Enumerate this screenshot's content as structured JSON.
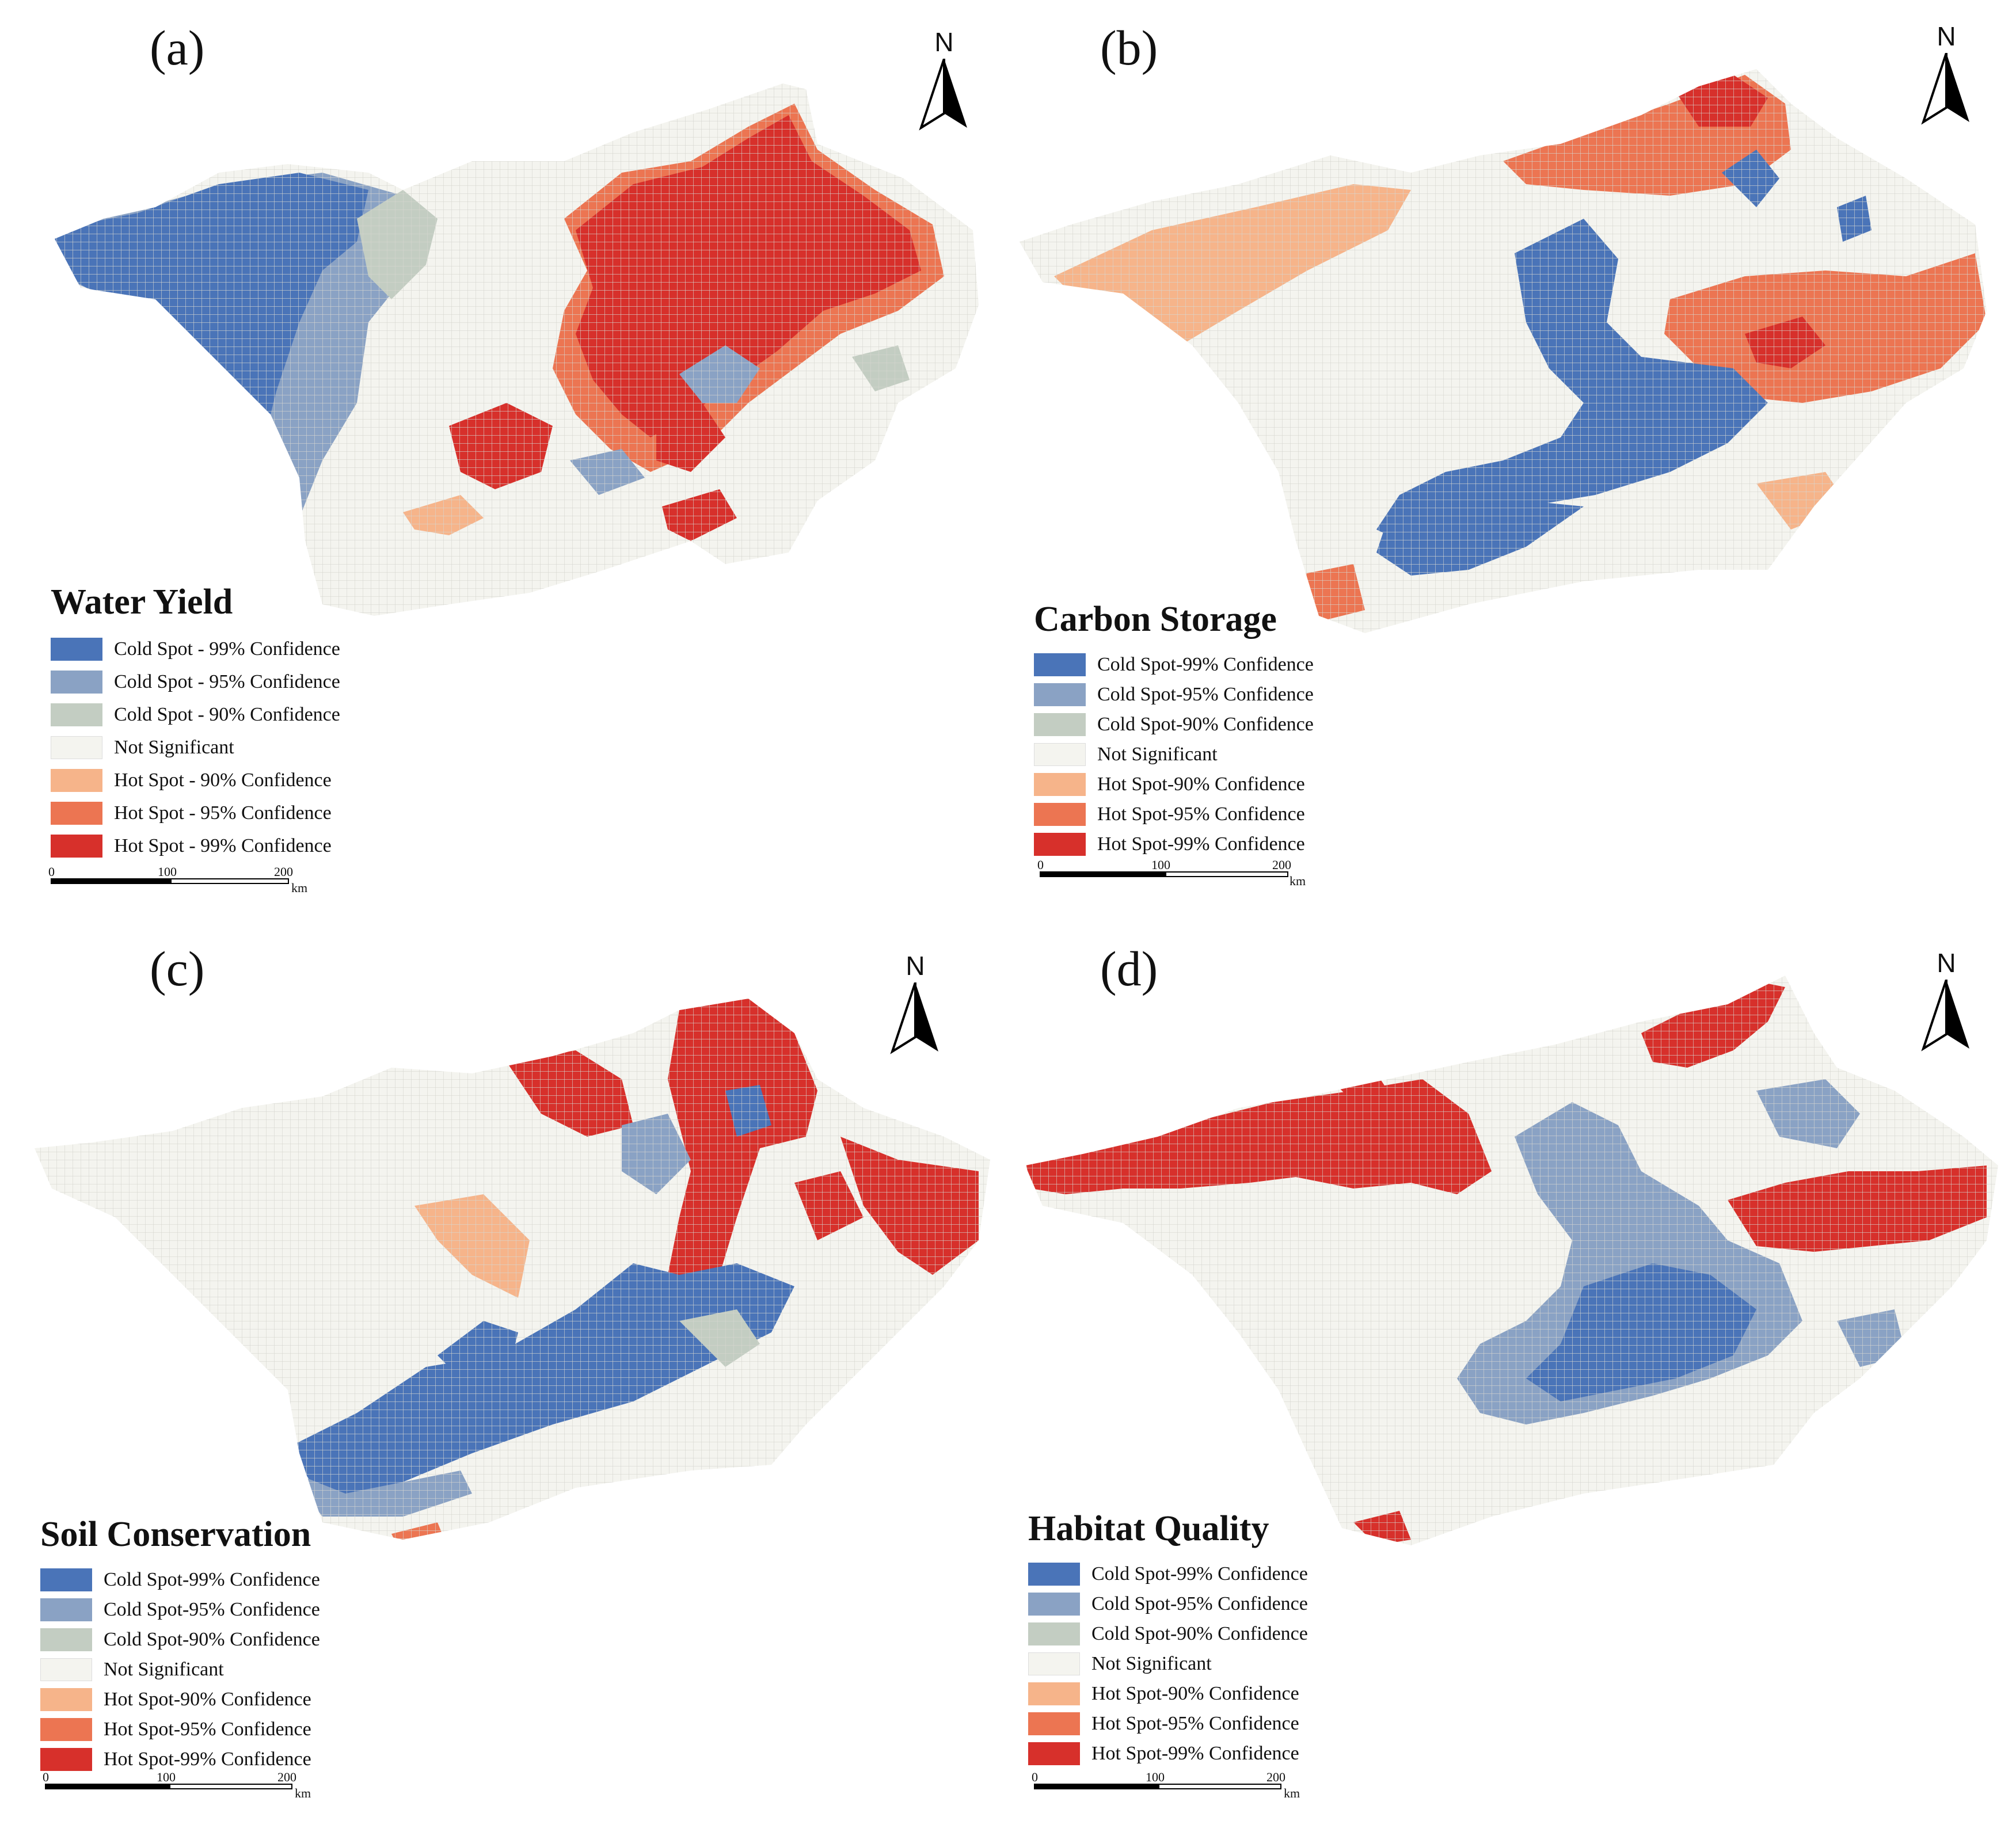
{
  "figure": {
    "legend_labels": [
      "Cold Spot-99% Confidence",
      "Cold Spot-95% Confidence",
      "Cold Spot-90% Confidence",
      "Not Significant",
      "Hot Spot-90% Confidence",
      "Hot Spot-95% Confidence",
      "Hot Spot-99% Confidence"
    ],
    "legend_labels_spaced": [
      "Cold Spot - 99% Confidence",
      "Cold Spot - 95% Confidence",
      "Cold Spot - 90% Confidence",
      "Not Significant",
      "Hot Spot - 90% Confidence",
      "Hot Spot - 95% Confidence",
      "Hot Spot - 99% Confidence"
    ],
    "legend_colors": [
      "#4a74b8",
      "#8aa2c4",
      "#c3cdc2",
      "#f4f4ef",
      "#f6b48a",
      "#ec7552",
      "#d7302b"
    ],
    "north_arrow": "N",
    "scale_ticks": [
      "0",
      "100",
      "200"
    ],
    "scale_unit": "km"
  },
  "panels": [
    {
      "label": "(a)",
      "title": "Water Yield"
    },
    {
      "label": "(b)",
      "title": "Carbon Storage"
    },
    {
      "label": "(c)",
      "title": "Soil Conservation"
    },
    {
      "label": "(d)",
      "title": "Habitat Quality"
    }
  ]
}
